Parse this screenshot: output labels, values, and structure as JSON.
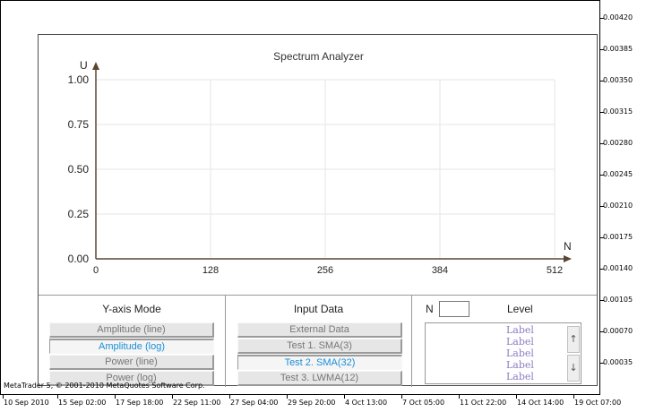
{
  "copyright": "MetaTrader 5, © 2001-2010 MetaQuotes Software Corp.",
  "price_axis": [
    "0.00420",
    "0.00385",
    "0.00350",
    "0.00315",
    "0.00280",
    "0.00245",
    "0.00210",
    "0.00175",
    "0.00140",
    "0.00105",
    "0.00070",
    "0.00035"
  ],
  "time_axis": [
    "10 Sep 2010",
    "15 Sep 02:00",
    "17 Sep 18:00",
    "22 Sep 11:00",
    "27 Sep 04:00",
    "29 Sep 20:00",
    "4 Oct 13:00",
    "7 Oct 05:00",
    "11 Oct 22:00",
    "14 Oct 14:00",
    "19 Oct 07:00"
  ],
  "analyzer": {
    "title": "Spectrum Analyzer",
    "y_axis_label": "U",
    "x_axis_label": "N",
    "y_ticks": [
      "1.00",
      "0.75",
      "0.50",
      "0.25",
      "0.00"
    ],
    "x_ticks": [
      "0",
      "128",
      "256",
      "384",
      "512"
    ]
  },
  "chart_data": {
    "type": "line",
    "title": "Spectrum Analyzer",
    "xlabel": "N",
    "ylabel": "U",
    "xlim": [
      0,
      512
    ],
    "ylim": [
      0,
      1
    ],
    "x_ticks": [
      0,
      128,
      256,
      384,
      512
    ],
    "y_ticks": [
      0,
      0.25,
      0.5,
      0.75,
      1
    ],
    "grid": true,
    "series": []
  },
  "y_axis_mode": {
    "title": "Y-axis Mode",
    "buttons": [
      {
        "label": "Amplitude (line)",
        "active": false
      },
      {
        "label": "Amplitude (log)",
        "active": true
      },
      {
        "label": "Power (line)",
        "active": false
      },
      {
        "label": "Power (log)",
        "active": false
      }
    ]
  },
  "input_data": {
    "title": "Input Data",
    "buttons": [
      {
        "label": "External Data",
        "active": false
      },
      {
        "label": "Test 1. SMA(3)",
        "active": false
      },
      {
        "label": "Test 2. SMA(32)",
        "active": true
      },
      {
        "label": "Test 3. LWMA(12)",
        "active": false
      }
    ]
  },
  "level_panel": {
    "n_label": "N",
    "n_value": "",
    "level_title": "Level",
    "items": [
      "Label",
      "Label",
      "Label",
      "Label",
      "Label"
    ],
    "scroll_up": "↑",
    "scroll_down": "↓"
  },
  "colors": {
    "axis": "#5a4632",
    "grid": "#e6e6e6",
    "active_text": "#1a8fd8",
    "level_text": "#8e7cc3"
  }
}
